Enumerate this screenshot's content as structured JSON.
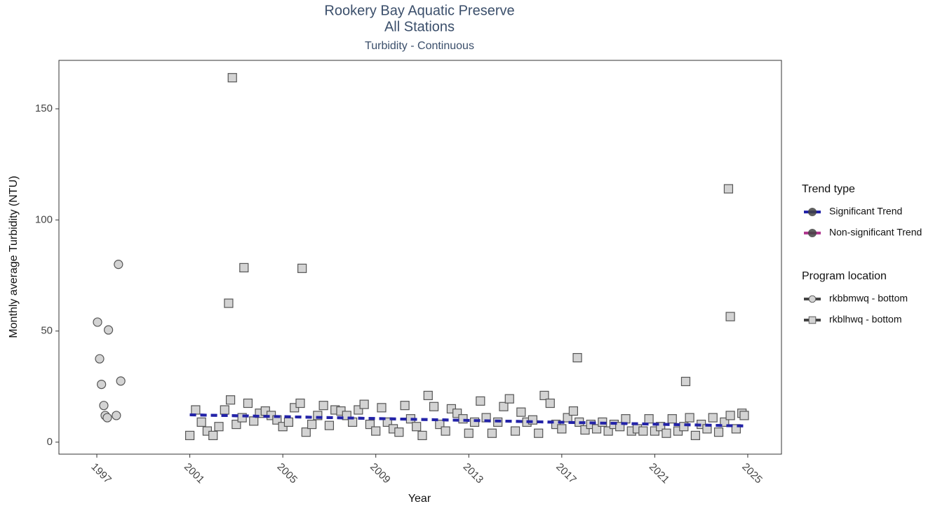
{
  "chart_data": {
    "type": "scatter",
    "title": "Rookery Bay Aquatic Preserve",
    "title_line2": "All Stations",
    "subtitle": "Turbidity - Continuous",
    "x_label": "Year",
    "y_label": "Monthly average Turbidity (NTU)",
    "xlim": [
      1995.37,
      2026.45
    ],
    "ylim": [
      -5.4,
      171.8
    ],
    "xticks": [
      1997,
      2001,
      2005,
      2009,
      2013,
      2017,
      2021,
      2025
    ],
    "yticks": [
      0,
      50,
      100,
      150
    ],
    "grid": false,
    "point_fill": "#d3d3d3",
    "point_stroke": "#555555",
    "trend_legend_title": "Trend type",
    "series_legend_title": "Program location",
    "trends": [
      {
        "name": "Significant Trend",
        "color": "#2323a8",
        "x": [
          2001.0,
          2024.8
        ],
        "values": [
          12.3,
          7.3
        ]
      },
      {
        "name": "Non-significant Trend",
        "color": "#b0388f",
        "x": [],
        "values": []
      }
    ],
    "series": [
      {
        "name": "rkbbmwq - bottom",
        "marker": "circle",
        "x": [
          1997.03,
          1997.12,
          1997.2,
          1997.3,
          1997.36,
          1997.45,
          1997.5,
          1997.84,
          1997.93,
          1998.03
        ],
        "values": [
          54,
          37.5,
          26,
          16.5,
          12,
          11,
          50.5,
          12,
          80,
          27.5
        ]
      },
      {
        "name": "rkblhwq - bottom",
        "marker": "square",
        "x": [
          2001.0,
          2001.25,
          2001.5,
          2001.75,
          2002.0,
          2002.25,
          2002.5,
          2002.75,
          2003.0,
          2003.25,
          2003.5,
          2003.75,
          2004.0,
          2004.25,
          2004.5,
          2004.75,
          2005.0,
          2005.25,
          2005.5,
          2005.75,
          2006.0,
          2006.25,
          2006.5,
          2006.75,
          2007.0,
          2007.25,
          2007.5,
          2007.75,
          2008.0,
          2008.25,
          2008.5,
          2008.75,
          2009.0,
          2009.25,
          2009.5,
          2009.75,
          2010.0,
          2010.25,
          2010.5,
          2010.75,
          2011.0,
          2011.25,
          2011.5,
          2011.75,
          2012.0,
          2012.25,
          2012.5,
          2012.75,
          2013.0,
          2013.25,
          2013.5,
          2013.75,
          2014.0,
          2014.25,
          2014.5,
          2014.75,
          2015.0,
          2015.25,
          2015.5,
          2015.75,
          2016.0,
          2016.25,
          2016.5,
          2016.75,
          2017.0,
          2017.25,
          2017.5,
          2017.75,
          2018.0,
          2018.25,
          2018.5,
          2018.75,
          2019.0,
          2019.25,
          2019.5,
          2019.75,
          2020.0,
          2020.25,
          2020.5,
          2020.75,
          2021.0,
          2021.25,
          2021.5,
          2021.75,
          2022.0,
          2022.25,
          2022.5,
          2022.75,
          2023.0,
          2023.25,
          2023.5,
          2023.75,
          2024.0,
          2024.25,
          2024.5,
          2024.75,
          2002.67,
          2002.83,
          2003.33,
          2005.83,
          2017.67,
          2022.33,
          2024.17,
          2024.25,
          2024.85
        ],
        "values": [
          3,
          14.5,
          9,
          5,
          3,
          7,
          14.5,
          19,
          8,
          11,
          17.5,
          9.5,
          13,
          14,
          12,
          10,
          7,
          9,
          15.5,
          17.5,
          4.5,
          8,
          12,
          16.5,
          7.5,
          14.5,
          14,
          12,
          9,
          14.5,
          17,
          8,
          5,
          15.5,
          9,
          6,
          4.5,
          16.5,
          10.5,
          7,
          3,
          21,
          16,
          8,
          5,
          15,
          13,
          10.5,
          4,
          9,
          18.5,
          11,
          4,
          9,
          16,
          19.5,
          5,
          13.5,
          9,
          10,
          4,
          21,
          17.5,
          8,
          6,
          11,
          14,
          9,
          5.5,
          8,
          6,
          9,
          5,
          8,
          7,
          10.5,
          5,
          6,
          5,
          10.5,
          5,
          7,
          4,
          10.5,
          5,
          7,
          11,
          3,
          8,
          6,
          11,
          4.5,
          9,
          12,
          6,
          13,
          62.5,
          164,
          78.5,
          78.2,
          38,
          27.3,
          114,
          56.5,
          12
        ]
      }
    ]
  }
}
